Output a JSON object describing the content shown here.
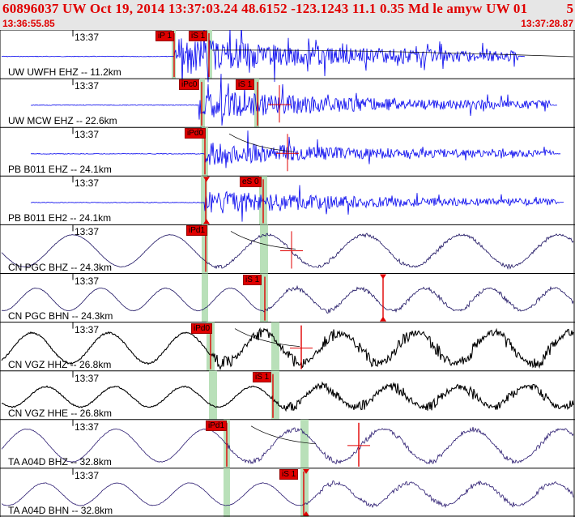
{
  "header": {
    "title": "60896037 UW Oct 19, 2014 13:37:03.24   48.6152  -123.1243 11.1 0.35 Md le amyw UW 01",
    "column": "5",
    "time_start": "13:36:55.85",
    "time_end": "13:37:28.87"
  },
  "colors": {
    "accent": "#e00000",
    "header_bg": "#e6e6e6",
    "trace_blue": "#0000ee",
    "pick_shade": "#b9e0b9"
  },
  "panels": [
    {
      "tick": "13:37",
      "station": "UW UWFH EHZ -- 11.2km",
      "picks": [
        "iP 1",
        "iS 1"
      ]
    },
    {
      "tick": "13:37",
      "station": "UW MCW EHZ -- 22.6km",
      "picks": [
        "iPc0",
        "iS 1"
      ]
    },
    {
      "tick": "13:37",
      "station": "PB B011 EHZ -- 24.1km",
      "picks": [
        "iPd0"
      ]
    },
    {
      "tick": "13:37",
      "station": "PB B011 EH2 -- 24.1km",
      "picks": [
        "eS 0"
      ]
    },
    {
      "tick": "13:37",
      "station": "CN PGC BHZ -- 24.3km",
      "picks": [
        "iPd1"
      ]
    },
    {
      "tick": "13:37",
      "station": "CN PGC BHN -- 24.3km",
      "picks": [
        "iS 1"
      ]
    },
    {
      "tick": "13:37",
      "station": "CN VGZ HHZ -- 26.8km",
      "picks": [
        "iPd0"
      ]
    },
    {
      "tick": "13:37",
      "station": "CN VGZ HHE -- 26.8km",
      "picks": [
        "iS 1"
      ]
    },
    {
      "tick": "13:37",
      "station": "TA A04D BHZ -- 32.8km",
      "picks": [
        "iPd1"
      ]
    },
    {
      "tick": "13:37",
      "station": "TA A04D BHN -- 32.8km",
      "picks": [
        "iS 1"
      ]
    }
  ]
}
